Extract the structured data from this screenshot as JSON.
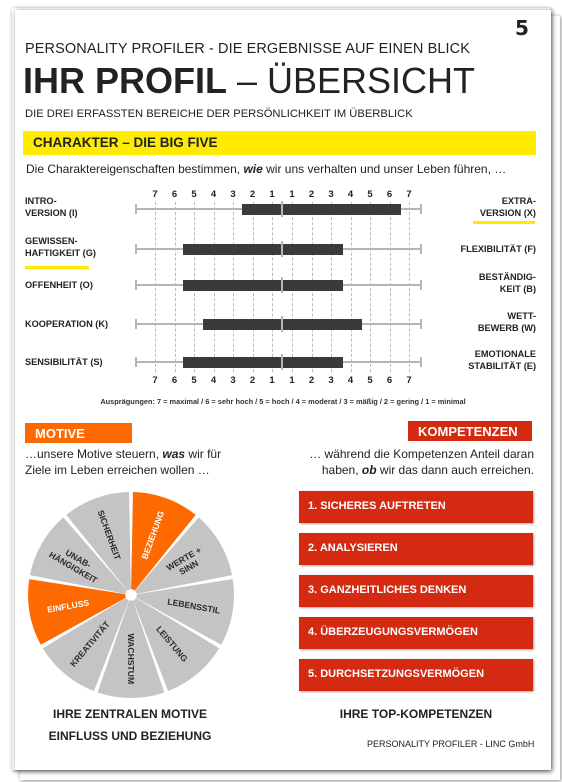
{
  "page_number": "5",
  "header": {
    "top": "PERSONALITY PROFILER - DIE ERGEBNISSE AUF EINEN BLICK",
    "title_bold": "IHR PROFIL",
    "title_rest": " – ÜBERSICHT",
    "subtitle": "DIE DREI ERFASSTEN BEREICHE DER PERSÖNLICHKEIT IM ÜBERBLICK"
  },
  "character": {
    "heading": "CHARAKTER – DIE BIG FIVE",
    "intro_a": "Die Charaktereigenschaften bestimmen, ",
    "intro_em": "wie",
    "intro_b": " wir uns verhalten und unser Leben führen, …",
    "ticks": [
      "7",
      "6",
      "5",
      "4",
      "3",
      "2",
      "1",
      "1",
      "2",
      "3",
      "4",
      "5",
      "6",
      "7"
    ],
    "rows": [
      {
        "left": "INTRO-\nVERSION (I)",
        "right": "EXTRA-\nVERSION (X)",
        "left_level": 2,
        "right_level": 6
      },
      {
        "left": "GEWISSEN-\nHAFTIGKEIT (G)",
        "right": "FLEXIBILITÄT (F)",
        "left_level": 5,
        "right_level": 3
      },
      {
        "left": "OFFENHEIT (O)",
        "right": "BESTÄNDIG-\nKEIT (B)",
        "left_level": 5,
        "right_level": 3
      },
      {
        "left": "KOOPERATION (K)",
        "right": "WETT-\nBEWERB (W)",
        "left_level": 4,
        "right_level": 4
      },
      {
        "left": "SENSIBILITÄT (S)",
        "right": "EMOTIONALE\nSTABILITÄT (E)",
        "left_level": 5,
        "right_level": 3
      }
    ],
    "legend": "Ausprägungen: 7 = maximal / 6 = sehr hoch / 5 = hoch / 4 = moderat / 3 = mäßig / 2 = gering / 1 = minimal"
  },
  "motive": {
    "heading": "MOTIVE",
    "text_a": "…unsere Motive steuern, ",
    "text_em": "was",
    "text_b": " wir für",
    "text_c": "Ziele im Leben erreichen wollen …",
    "segments": [
      {
        "label": "BEZIEHUNG",
        "active": true
      },
      {
        "label": "WERTE +\nSINN",
        "active": false
      },
      {
        "label": "LEBENSSTIL",
        "active": false
      },
      {
        "label": "LEISTUNG",
        "active": false
      },
      {
        "label": "WACHSTUM",
        "active": false
      },
      {
        "label": "KREATIVITÄT",
        "active": false
      },
      {
        "label": "EINFLUSS",
        "active": true
      },
      {
        "label": "UNAB-\nHÄNGIGKEIT",
        "active": false
      },
      {
        "label": "SICHERHEIT",
        "active": false
      }
    ],
    "caption1": "IHRE ZENTRALEN MOTIVE",
    "caption2": "EINFLUSS UND BEZIEHUNG"
  },
  "kompetenzen": {
    "heading": "KOMPETENZEN",
    "text_a": "… während die Kompetenzen Anteil daran",
    "text_b1": "haben, ",
    "text_em": "ob",
    "text_b2": " wir das dann auch erreichen.",
    "items": [
      "1.  SICHERES AUFTRETEN",
      "2.  ANALYSIEREN",
      "3.  GANZHEITLICHES DENKEN",
      "4.  ÜBERZEUGUNGSVERMÖGEN",
      "5.  DURCHSETZUNGSVERMÖGEN"
    ],
    "caption": "IHRE TOP-KOMPETENZEN"
  },
  "colors": {
    "yellow": "#ffeb00",
    "orange": "#ff6a00",
    "red": "#d42a12",
    "gray": "#c4c4c4",
    "bar": "#3a3a3a"
  },
  "footer": "PERSONALITY PROFILER - LINC GmbH"
}
